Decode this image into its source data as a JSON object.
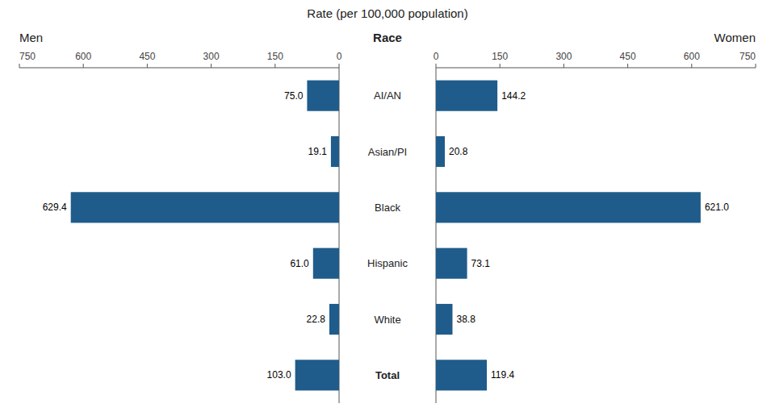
{
  "chart_data": {
    "type": "bar",
    "orientation": "horizontal",
    "xlabel": "Rate (per 100,000 population)",
    "ylabel": "Race",
    "categories": [
      "AI/AN",
      "Asian/PI",
      "Black",
      "Hispanic",
      "White",
      "Total"
    ],
    "series": [
      {
        "name": "Men",
        "color": "#1F5C8B",
        "values": [
          75.0,
          19.1,
          629.4,
          61.0,
          22.8,
          103.0
        ],
        "value_labels": [
          "75.0",
          "19.1",
          "629.4",
          "61.0",
          "22.8",
          "103.0"
        ]
      },
      {
        "name": "Women",
        "color": "#1F5C8B",
        "values": [
          144.2,
          20.8,
          621.0,
          73.1,
          38.8,
          119.4
        ],
        "value_labels": [
          "144.2",
          "20.8",
          "621.0",
          "73.1",
          "38.8",
          "119.4"
        ]
      }
    ],
    "xlim": [
      0,
      750
    ],
    "xticks": [
      0,
      150,
      300,
      450,
      600,
      750
    ],
    "data_labels": true,
    "grid": false
  }
}
